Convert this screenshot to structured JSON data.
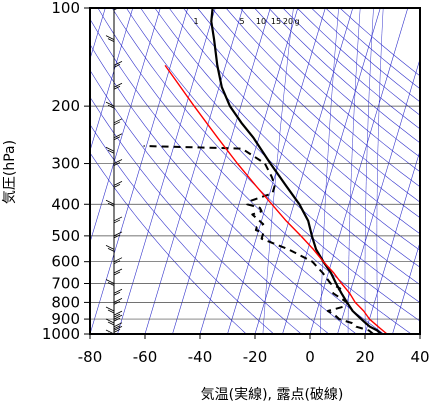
{
  "chart_data": {
    "type": "line",
    "xlabel": "気温(実線), 露点(破線)",
    "ylabel": "気圧(hPa)",
    "xlim": [
      -80,
      40
    ],
    "ylim": [
      1000,
      100
    ],
    "y_scale": "log",
    "x_ticks": [
      "-80",
      "-60",
      "-40",
      "-20",
      "0",
      "20",
      "40"
    ],
    "y_ticks": [
      "100",
      "200",
      "300",
      "400",
      "500",
      "600",
      "700",
      "800",
      "900",
      "1000"
    ],
    "mixing_ratio_labels": [
      "1",
      "5",
      "10",
      "15",
      "20",
      "g"
    ],
    "colors": {
      "temperature": "#000000",
      "dewpoint": "#000000",
      "parcel": "#ff0000",
      "isotherm": "#3333cc",
      "adiabat": "#3333cc",
      "wind": "#000000"
    },
    "series": [
      {
        "style": "solid",
        "points": [
          [
            1000,
            26
          ],
          [
            975,
            24
          ],
          [
            950,
            21
          ],
          [
            925,
            19
          ],
          [
            900,
            17
          ],
          [
            850,
            13
          ],
          [
            800,
            10
          ],
          [
            750,
            7
          ],
          [
            700,
            4
          ],
          [
            650,
            1
          ],
          [
            600,
            -3
          ],
          [
            550,
            -7
          ],
          [
            500,
            -10
          ],
          [
            450,
            -13
          ],
          [
            400,
            -18
          ],
          [
            350,
            -25
          ],
          [
            300,
            -33
          ],
          [
            250,
            -42
          ],
          [
            225,
            -48
          ],
          [
            200,
            -54
          ],
          [
            175,
            -59
          ],
          [
            150,
            -63
          ],
          [
            125,
            -67
          ],
          [
            110,
            -70
          ],
          [
            100,
            -71
          ]
        ]
      },
      {
        "style": "dashed",
        "points": [
          [
            1000,
            23
          ],
          [
            975,
            21
          ],
          [
            950,
            16
          ],
          [
            925,
            14
          ],
          [
            900,
            9
          ],
          [
            875,
            7
          ],
          [
            850,
            4
          ],
          [
            825,
            9
          ],
          [
            800,
            10
          ],
          [
            775,
            7
          ],
          [
            750,
            4
          ],
          [
            725,
            6
          ],
          [
            700,
            2
          ],
          [
            650,
            -2
          ],
          [
            600,
            -7
          ],
          [
            550,
            -17
          ],
          [
            510,
            -28
          ],
          [
            490,
            -28
          ],
          [
            480,
            -31
          ],
          [
            470,
            -31
          ],
          [
            460,
            -29
          ],
          [
            430,
            -34
          ],
          [
            420,
            -31
          ],
          [
            410,
            -32
          ],
          [
            400,
            -37
          ],
          [
            390,
            -36
          ],
          [
            370,
            -29
          ],
          [
            350,
            -29
          ],
          [
            330,
            -31
          ],
          [
            300,
            -35
          ],
          [
            270,
            -45
          ],
          [
            265,
            -81
          ]
        ]
      },
      {
        "style": "parcel",
        "points": [
          [
            1000,
            28
          ],
          [
            950,
            24
          ],
          [
            900,
            20
          ],
          [
            850,
            17
          ],
          [
            800,
            13
          ],
          [
            750,
            10
          ],
          [
            700,
            6
          ],
          [
            650,
            2
          ],
          [
            600,
            -3
          ],
          [
            550,
            -8
          ],
          [
            500,
            -14
          ],
          [
            450,
            -21
          ],
          [
            400,
            -28
          ],
          [
            350,
            -36
          ],
          [
            300,
            -45
          ],
          [
            250,
            -55
          ],
          [
            200,
            -67
          ],
          [
            150,
            -82
          ]
        ]
      }
    ],
    "wind_profile": [
      1000,
      975,
      950,
      925,
      900,
      875,
      850,
      800,
      750,
      700,
      650,
      600,
      550,
      500,
      450,
      400,
      350,
      300,
      275,
      250,
      225,
      200,
      175,
      150,
      125,
      100
    ],
    "grid": true
  }
}
